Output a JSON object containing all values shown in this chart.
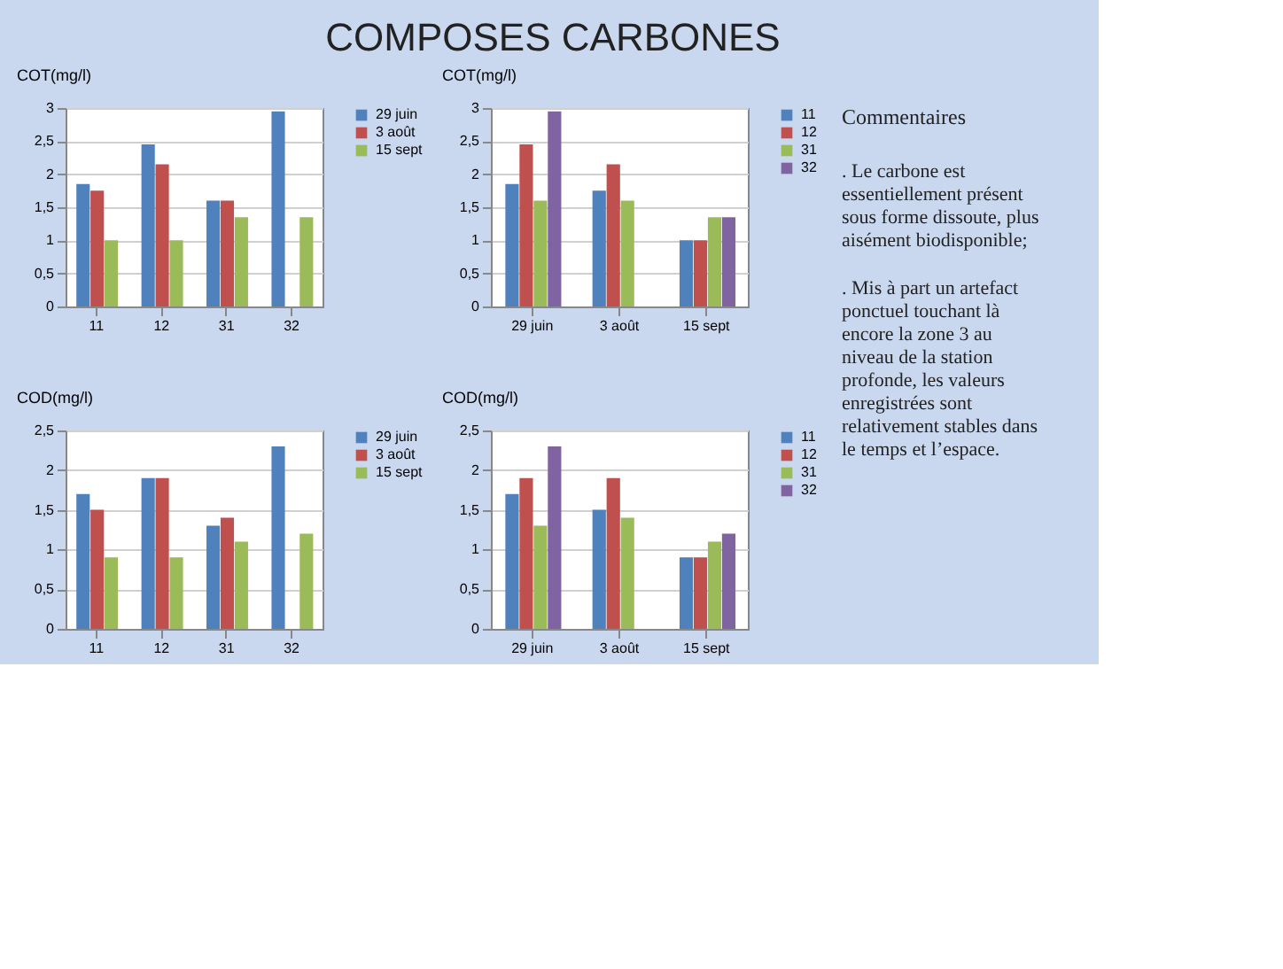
{
  "chart_data": [
    {
      "type": "other",
      "title": "COMPOSES CARBONES"
    },
    {
      "type": "bar",
      "ylabel": "COT(mg/l)",
      "categories": [
        "11",
        "12",
        "31",
        "32"
      ],
      "ylim": [
        0,
        3
      ],
      "yticks": [
        0,
        {
          "value": 0.5,
          "label": "0,5"
        },
        1,
        {
          "value": 1.5,
          "label": "1,5"
        },
        2,
        {
          "value": 2.5,
          "label": "2,5"
        },
        3
      ],
      "grid": "y",
      "legend": "right",
      "series": [
        {
          "name": "29 juin",
          "color": "#4f81bd",
          "values": [
            1.85,
            2.45,
            1.6,
            2.95
          ]
        },
        {
          "name": "3 août",
          "color": "#c0504d",
          "values": [
            1.75,
            2.15,
            1.6,
            null
          ]
        },
        {
          "name": "15 sept",
          "color": "#9bbb59",
          "values": [
            1.0,
            1.0,
            1.35,
            1.35
          ]
        }
      ]
    },
    {
      "type": "bar",
      "ylabel": "COT(mg/l)",
      "categories": [
        "29 juin",
        "3 août",
        "15 sept"
      ],
      "ylim": [
        0,
        3
      ],
      "yticks": [
        0,
        {
          "value": 0.5,
          "label": "0,5"
        },
        1,
        {
          "value": 1.5,
          "label": "1,5"
        },
        2,
        {
          "value": 2.5,
          "label": "2,5"
        },
        3
      ],
      "grid": "y",
      "legend": "right",
      "series": [
        {
          "name": "11",
          "color": "#4f81bd",
          "values": [
            1.85,
            1.75,
            1.0
          ]
        },
        {
          "name": "12",
          "color": "#c0504d",
          "values": [
            2.45,
            2.15,
            1.0
          ]
        },
        {
          "name": "31",
          "color": "#9bbb59",
          "values": [
            1.6,
            1.6,
            1.35
          ]
        },
        {
          "name": "32",
          "color": "#8064a2",
          "values": [
            2.95,
            null,
            1.35
          ]
        }
      ]
    },
    {
      "type": "bar",
      "ylabel": "COD(mg/l)",
      "categories": [
        "11",
        "12",
        "31",
        "32"
      ],
      "ylim": [
        0,
        2.5
      ],
      "yticks": [
        0,
        {
          "value": 0.5,
          "label": "0,5"
        },
        1,
        {
          "value": 1.5,
          "label": "1,5"
        },
        2,
        {
          "value": 2.5,
          "label": "2,5"
        }
      ],
      "grid": "y",
      "legend": "right",
      "series": [
        {
          "name": "29 juin",
          "color": "#4f81bd",
          "values": [
            1.7,
            1.9,
            1.3,
            2.3
          ]
        },
        {
          "name": "3 août",
          "color": "#c0504d",
          "values": [
            1.5,
            1.9,
            1.4,
            null
          ]
        },
        {
          "name": "15 sept",
          "color": "#9bbb59",
          "values": [
            0.9,
            0.9,
            1.1,
            1.2
          ]
        }
      ]
    },
    {
      "type": "bar",
      "ylabel": "COD(mg/l)",
      "categories": [
        "29 juin",
        "3 août",
        "15 sept"
      ],
      "ylim": [
        0,
        2.5
      ],
      "yticks": [
        0,
        {
          "value": 0.5,
          "label": "0,5"
        },
        1,
        {
          "value": 1.5,
          "label": "1,5"
        },
        2,
        {
          "value": 2.5,
          "label": "2,5"
        }
      ],
      "grid": "y",
      "legend": "right",
      "series": [
        {
          "name": "11",
          "color": "#4f81bd",
          "values": [
            1.7,
            1.5,
            0.9
          ]
        },
        {
          "name": "12",
          "color": "#c0504d",
          "values": [
            1.9,
            1.9,
            0.9
          ]
        },
        {
          "name": "31",
          "color": "#9bbb59",
          "values": [
            1.3,
            1.4,
            1.1
          ]
        },
        {
          "name": "32",
          "color": "#8064a2",
          "values": [
            2.3,
            null,
            1.2
          ]
        }
      ]
    },
    {
      "type": "other",
      "title": "Commentaires",
      "annotations": [
        ". Le carbone est essentiellement présent sous forme dissoute, plus aisément biodisponible;",
        ". Mis à part un artefact ponctuel touchant là encore la zone 3 au niveau de la station profonde, les valeurs enregistrées sont relativement stables dans le temps et l’espace."
      ]
    }
  ]
}
